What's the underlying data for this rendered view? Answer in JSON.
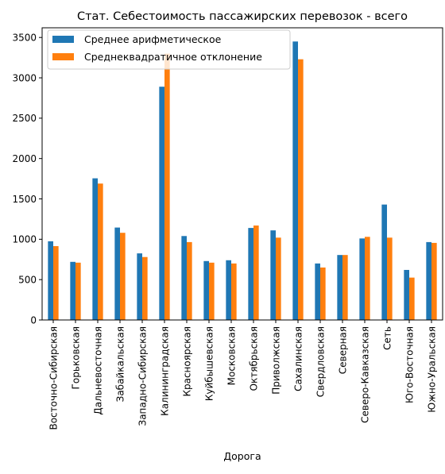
{
  "chart_data": {
    "type": "bar",
    "title": "Стат. Себестоимость пассажирских перевозок - всего",
    "xlabel": "Дорога",
    "ylabel": "",
    "ylim": [
      0,
      3620
    ],
    "yticks": [
      0,
      500,
      1000,
      1500,
      2000,
      2500,
      3000,
      3500
    ],
    "grid": false,
    "legend_position": "top-left",
    "categories": [
      "Восточно-Сибирская",
      "Горьковская",
      "Дальневосточная",
      "Забайкальская",
      "Западно-Сибирская",
      "Калининградская",
      "Красноярская",
      "Куйбышевская",
      "Московская",
      "Октябрьская",
      "Приволжская",
      "Сахалинская",
      "Свердловская",
      "Северная",
      "Северо-Кавказская",
      "Сеть",
      "Юго-Восточная",
      "Южно-Уральская"
    ],
    "series": [
      {
        "name": "Среднее арифметическое",
        "color": "#1f77b4",
        "values": [
          975,
          720,
          1755,
          1145,
          825,
          2890,
          1040,
          730,
          740,
          1140,
          1110,
          3450,
          700,
          805,
          1010,
          1430,
          620,
          965
        ]
      },
      {
        "name": "Среднеквадратичное отклонение",
        "color": "#ff7f0e",
        "values": [
          915,
          710,
          1690,
          1080,
          780,
          3300,
          965,
          710,
          700,
          1170,
          1020,
          3230,
          650,
          805,
          1030,
          1020,
          525,
          955
        ]
      }
    ]
  }
}
